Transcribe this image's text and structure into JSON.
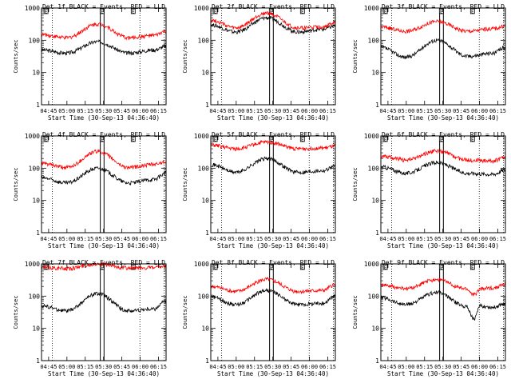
{
  "chart_data": [
    {
      "type": "line",
      "title": "Det 1f BLACK = Events, RED = LLD",
      "xlabel": "Start Time (30-Sep-13 04:36:40)",
      "ylabel": "Counts/sec",
      "yscale": "log",
      "ylim": [
        1,
        1000
      ],
      "x_ticks": [
        "04:45",
        "05:00",
        "05:15",
        "05:30",
        "05:45",
        "06:00",
        "06:15"
      ],
      "y_ticks": [
        "1",
        "10",
        "100",
        "1000"
      ],
      "markers": [
        "E",
        "E",
        "E"
      ],
      "series": [
        {
          "color": "#000000",
          "keys": [
            [
              0,
              50
            ],
            [
              0.2,
              40
            ],
            [
              0.45,
              90
            ],
            [
              0.7,
              40
            ],
            [
              0.9,
              50
            ],
            [
              1,
              65
            ]
          ]
        },
        {
          "color": "#ff0000",
          "keys": [
            [
              0,
              150
            ],
            [
              0.2,
              120
            ],
            [
              0.45,
              320
            ],
            [
              0.7,
              120
            ],
            [
              0.9,
              140
            ],
            [
              1,
              190
            ]
          ]
        }
      ]
    },
    {
      "type": "line",
      "title": "Det 2f BLACK = Events, RED = LLD",
      "xlabel": "Start Time (30-Sep-13 04:36:40)",
      "ylabel": "Counts/sec",
      "yscale": "log",
      "ylim": [
        1,
        1000
      ],
      "x_ticks": [
        "04:45",
        "05:00",
        "05:15",
        "05:30",
        "05:45",
        "06:00",
        "06:15"
      ],
      "y_ticks": [
        "1",
        "10",
        "100",
        "1000"
      ],
      "markers": [
        "E",
        "E",
        "E"
      ],
      "series": [
        {
          "color": "#000000",
          "keys": [
            [
              0,
              300
            ],
            [
              0.2,
              180
            ],
            [
              0.45,
              500
            ],
            [
              0.7,
              180
            ],
            [
              0.9,
              220
            ],
            [
              1,
              280
            ]
          ]
        },
        {
          "color": "#ff0000",
          "keys": [
            [
              0,
              420
            ],
            [
              0.2,
              240
            ],
            [
              0.45,
              700
            ],
            [
              0.7,
              240
            ],
            [
              0.9,
              260
            ],
            [
              1,
              360
            ]
          ]
        }
      ]
    },
    {
      "type": "line",
      "title": "Det 3f BLACK = Events, RED = LLD",
      "xlabel": "Start Time (30-Sep-13 04:36:40)",
      "ylabel": "Counts/sec",
      "yscale": "log",
      "ylim": [
        1,
        1000
      ],
      "x_ticks": [
        "04:45",
        "05:00",
        "05:15",
        "05:30",
        "05:45",
        "06:00",
        "06:15"
      ],
      "y_ticks": [
        "1",
        "10",
        "100",
        "1000"
      ],
      "markers": [
        "E",
        "E",
        "E"
      ],
      "series": [
        {
          "color": "#000000",
          "keys": [
            [
              0,
              60
            ],
            [
              0.2,
              30
            ],
            [
              0.45,
              100
            ],
            [
              0.7,
              32
            ],
            [
              0.9,
              40
            ],
            [
              1,
              60
            ]
          ]
        },
        {
          "color": "#ff0000",
          "keys": [
            [
              0,
              260
            ],
            [
              0.2,
              190
            ],
            [
              0.45,
              380
            ],
            [
              0.7,
              190
            ],
            [
              0.9,
              230
            ],
            [
              1,
              270
            ]
          ]
        }
      ]
    },
    {
      "type": "line",
      "title": "Det 4f BLACK = Events, RED = LLD",
      "xlabel": "Start Time (30-Sep-13 04:36:40)",
      "ylabel": "Counts/sec",
      "yscale": "log",
      "ylim": [
        1,
        1000
      ],
      "x_ticks": [
        "04:45",
        "05:00",
        "05:15",
        "05:30",
        "05:45",
        "06:00",
        "06:15"
      ],
      "y_ticks": [
        "1",
        "10",
        "100",
        "1000"
      ],
      "markers": [
        "E",
        "E",
        "E"
      ],
      "series": [
        {
          "color": "#000000",
          "keys": [
            [
              0,
              50
            ],
            [
              0.2,
              35
            ],
            [
              0.45,
              100
            ],
            [
              0.7,
              35
            ],
            [
              0.9,
              45
            ],
            [
              1,
              70
            ]
          ]
        },
        {
          "color": "#ff0000",
          "keys": [
            [
              0,
              140
            ],
            [
              0.2,
              105
            ],
            [
              0.45,
              330
            ],
            [
              0.7,
              105
            ],
            [
              0.9,
              130
            ],
            [
              1,
              160
            ]
          ]
        }
      ]
    },
    {
      "type": "line",
      "title": "Det 5f BLACK = Events, RED = LLD",
      "xlabel": "Start Time (30-Sep-13 04:36:40)",
      "ylabel": "Counts/sec",
      "yscale": "log",
      "ylim": [
        1,
        1000
      ],
      "x_ticks": [
        "04:45",
        "05:00",
        "05:15",
        "05:30",
        "05:45",
        "06:00",
        "06:15"
      ],
      "y_ticks": [
        "1",
        "10",
        "100",
        "1000"
      ],
      "markers": [
        "E",
        "E",
        "E"
      ],
      "series": [
        {
          "color": "#000000",
          "keys": [
            [
              0,
              130
            ],
            [
              0.2,
              75
            ],
            [
              0.45,
              200
            ],
            [
              0.7,
              75
            ],
            [
              0.9,
              85
            ],
            [
              1,
              120
            ]
          ]
        },
        {
          "color": "#ff0000",
          "keys": [
            [
              0,
              520
            ],
            [
              0.2,
              400
            ],
            [
              0.45,
              650
            ],
            [
              0.7,
              400
            ],
            [
              0.9,
              420
            ],
            [
              1,
              480
            ]
          ]
        }
      ]
    },
    {
      "type": "line",
      "title": "Det 6f BLACK = Events, RED = LLD",
      "xlabel": "Start Time (30-Sep-13 04:36:40)",
      "ylabel": "Counts/sec",
      "yscale": "log",
      "ylim": [
        1,
        1000
      ],
      "x_ticks": [
        "04:45",
        "05:00",
        "05:15",
        "05:30",
        "05:45",
        "06:00",
        "06:15"
      ],
      "y_ticks": [
        "1",
        "10",
        "100",
        "1000"
      ],
      "markers": [
        "E",
        "E",
        "E"
      ],
      "series": [
        {
          "color": "#000000",
          "keys": [
            [
              0,
              110
            ],
            [
              0.2,
              70
            ],
            [
              0.45,
              150
            ],
            [
              0.7,
              70
            ],
            [
              0.9,
              65
            ],
            [
              1,
              90
            ]
          ]
        },
        {
          "color": "#ff0000",
          "keys": [
            [
              0,
              240
            ],
            [
              0.2,
              180
            ],
            [
              0.45,
              340
            ],
            [
              0.7,
              180
            ],
            [
              0.9,
              170
            ],
            [
              1,
              220
            ]
          ]
        }
      ]
    },
    {
      "type": "line",
      "title": "Det 7f BLACK = Events, RED = LLD",
      "xlabel": "Start Time (30-Sep-13 04:36:40)",
      "ylabel": "Counts/sec",
      "yscale": "log",
      "ylim": [
        1,
        1000
      ],
      "x_ticks": [
        "04:45",
        "05:00",
        "05:15",
        "05:30",
        "05:45",
        "06:00",
        "06:15"
      ],
      "y_ticks": [
        "1",
        "10",
        "100",
        "1000"
      ],
      "markers": [
        "E",
        "E",
        "E"
      ],
      "series": [
        {
          "color": "#000000",
          "keys": [
            [
              0,
              50
            ],
            [
              0.2,
              35
            ],
            [
              0.45,
              120
            ],
            [
              0.7,
              35
            ],
            [
              0.9,
              40
            ],
            [
              1,
              70
            ]
          ]
        },
        {
          "color": "#ff0000",
          "keys": [
            [
              0,
              780
            ],
            [
              0.2,
              720
            ],
            [
              0.45,
              1000
            ],
            [
              0.7,
              740
            ],
            [
              0.9,
              760
            ],
            [
              1,
              820
            ]
          ]
        }
      ]
    },
    {
      "type": "line",
      "title": "Det 8f BLACK = Events, RED = LLD",
      "xlabel": "Start Time (30-Sep-13 04:36:40)",
      "ylabel": "Counts/sec",
      "yscale": "log",
      "ylim": [
        1,
        1000
      ],
      "x_ticks": [
        "04:45",
        "05:00",
        "05:15",
        "05:30",
        "05:45",
        "06:00",
        "06:15"
      ],
      "y_ticks": [
        "1",
        "10",
        "100",
        "1000"
      ],
      "markers": [
        "E",
        "E",
        "E"
      ],
      "series": [
        {
          "color": "#000000",
          "keys": [
            [
              0,
              95
            ],
            [
              0.2,
              55
            ],
            [
              0.45,
              150
            ],
            [
              0.7,
              55
            ],
            [
              0.9,
              60
            ],
            [
              1,
              100
            ]
          ]
        },
        {
          "color": "#ff0000",
          "keys": [
            [
              0,
              200
            ],
            [
              0.2,
              140
            ],
            [
              0.45,
              330
            ],
            [
              0.7,
              140
            ],
            [
              0.9,
              150
            ],
            [
              1,
              230
            ]
          ]
        }
      ]
    },
    {
      "type": "line",
      "title": "Det 9f BLACK = Events, RED = LLD",
      "xlabel": "Start Time (30-Sep-13 04:36:40)",
      "ylabel": "Counts/sec",
      "yscale": "log",
      "ylim": [
        1,
        1000
      ],
      "x_ticks": [
        "04:45",
        "05:00",
        "05:15",
        "05:30",
        "05:45",
        "06:00",
        "06:15"
      ],
      "y_ticks": [
        "1",
        "10",
        "100",
        "1000"
      ],
      "markers": [
        "E",
        "E",
        "E"
      ],
      "series": [
        {
          "color": "#000000",
          "keys": [
            [
              0,
              90
            ],
            [
              0.2,
              55
            ],
            [
              0.45,
              130
            ],
            [
              0.68,
              50
            ],
            [
              0.75,
              20
            ],
            [
              0.8,
              50
            ],
            [
              0.9,
              45
            ],
            [
              1,
              60
            ]
          ]
        },
        {
          "color": "#ff0000",
          "keys": [
            [
              0,
              220
            ],
            [
              0.2,
              170
            ],
            [
              0.45,
              330
            ],
            [
              0.68,
              170
            ],
            [
              0.75,
              110
            ],
            [
              0.8,
              170
            ],
            [
              0.9,
              180
            ],
            [
              1,
              230
            ]
          ]
        }
      ]
    }
  ]
}
